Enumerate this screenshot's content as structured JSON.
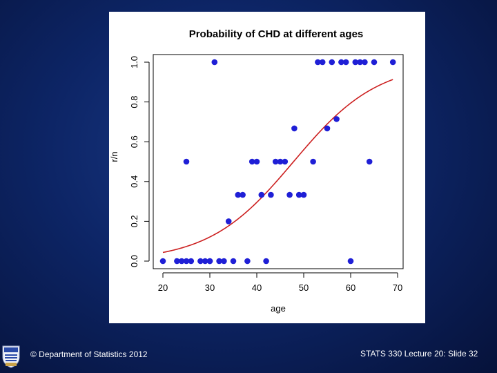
{
  "footer": {
    "copyright": "© Department of Statistics 2012",
    "slide_info": "STATS 330 Lecture 20: Slide 32"
  },
  "logo": {
    "icon": "university-crest-icon"
  },
  "colors": {
    "point": "#1f1fd6",
    "curve": "#cc1f1f",
    "panel": "#ffffff"
  },
  "chart_data": {
    "type": "scatter",
    "title": "Probability of CHD at different ages",
    "xlabel": "age",
    "ylabel": "r/n",
    "xlim": [
      20,
      70
    ],
    "ylim": [
      0,
      1
    ],
    "xticks": [
      20,
      30,
      40,
      50,
      60,
      70
    ],
    "yticks": [
      0.0,
      0.2,
      0.4,
      0.6,
      0.8,
      1.0
    ],
    "ytick_labels": [
      "0.0",
      "0.2",
      "0.4",
      "0.6",
      "0.8",
      "1.0"
    ],
    "points": {
      "x": [
        20,
        23,
        24,
        25,
        25,
        26,
        28,
        29,
        30,
        30,
        31,
        32,
        33,
        34,
        35,
        36,
        37,
        38,
        39,
        40,
        41,
        42,
        43,
        44,
        45,
        46,
        47,
        48,
        49,
        50,
        52,
        53,
        54,
        55,
        56,
        57,
        58,
        59,
        60,
        61,
        62,
        63,
        64,
        65,
        69
      ],
      "y": [
        0,
        0,
        0,
        0.5,
        0,
        0,
        0,
        0,
        0,
        0,
        1,
        0,
        0,
        0.2,
        0,
        0.333,
        0.333,
        0,
        0.5,
        0.5,
        0.333,
        0,
        0.333,
        0.5,
        0.5,
        0.5,
        0.333,
        0.667,
        0.333,
        0.333,
        0.5,
        1,
        1,
        0.667,
        1,
        0.714,
        1,
        1,
        0,
        1,
        1,
        1,
        0.5,
        1,
        1
      ]
    },
    "fitted_curve": {
      "model": "logistic",
      "intercept": -5.31,
      "slope": 0.111,
      "x_range": [
        20,
        69
      ]
    }
  }
}
